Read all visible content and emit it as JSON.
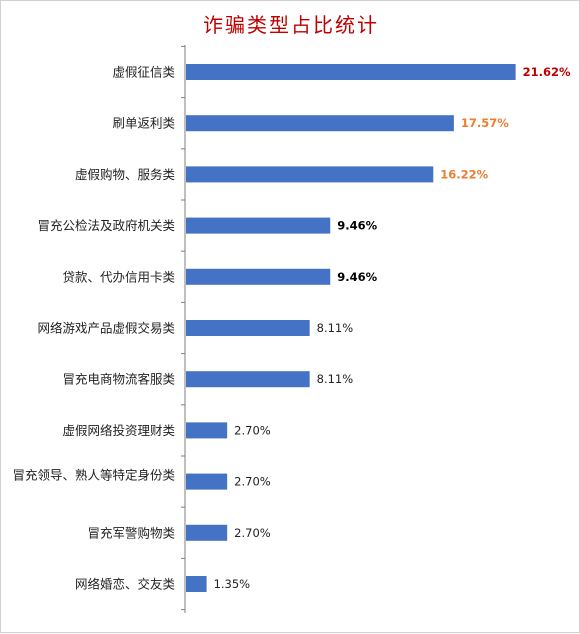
{
  "colors": {
    "bar": "#4472c4",
    "axis": "#7f7f7f",
    "title": "#c00000",
    "value_top": "#c00000",
    "value_high": "#ed7d31",
    "value_mid": "#000000",
    "value_normal": "#222222"
  },
  "chart_data": {
    "type": "bar",
    "orientation": "horizontal",
    "title": "诈骗类型占比统计",
    "unit": "%",
    "xlim": [
      0,
      22.3
    ],
    "grid": false,
    "legend": "none",
    "categories": [
      "虚假征信类",
      "刷单返利类",
      "虚假购物、服务类",
      "冒充公检法及政府机关类",
      "贷款、代办信用卡类",
      "网络游戏产品虚假交易类",
      "冒充电商物流客服类",
      "虚假网络投资理财类",
      "冒充领导、熟人等特定身份类",
      "冒充军警购物类",
      "网络婚恋、交友类"
    ],
    "values": [
      21.62,
      17.57,
      16.22,
      9.46,
      9.46,
      8.11,
      8.11,
      2.7,
      2.7,
      2.7,
      1.35
    ],
    "value_labels": [
      "21.62%",
      "17.57%",
      "16.22%",
      "9.46%",
      "9.46%",
      "8.11%",
      "8.11%",
      "2.70%",
      "2.70%",
      "2.70%",
      "1.35%"
    ]
  }
}
